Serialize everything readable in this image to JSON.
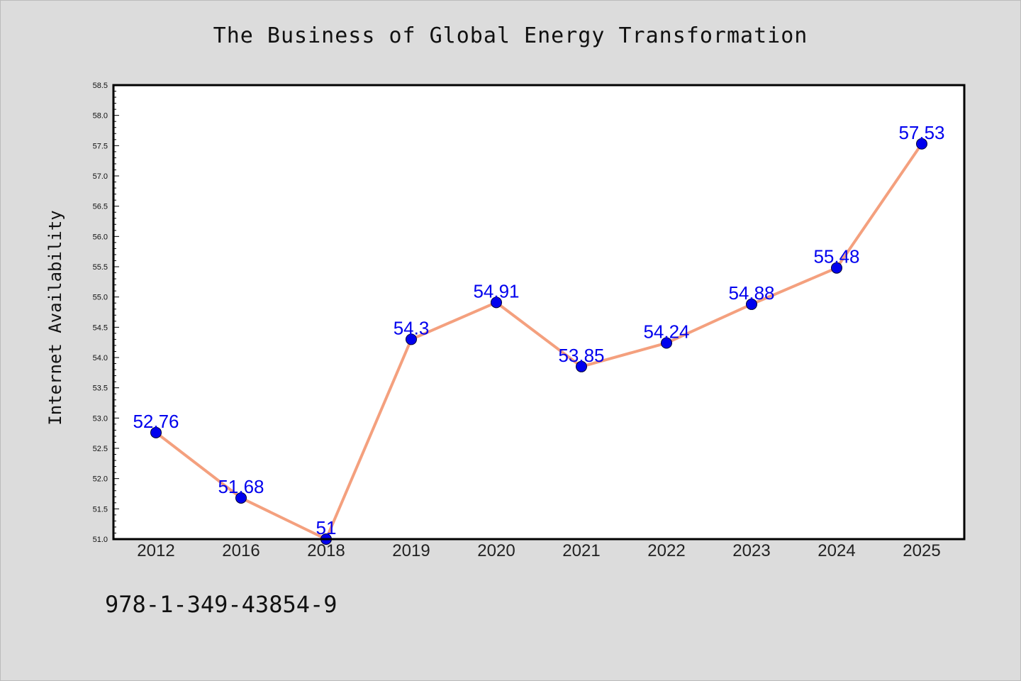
{
  "chart_data": {
    "type": "line",
    "title": "The Business of Global Energy Transformation",
    "xlabel": "",
    "ylabel": "Internet Availability",
    "categories": [
      "2012",
      "2016",
      "2018",
      "2019",
      "2020",
      "2021",
      "2022",
      "2023",
      "2024",
      "2025"
    ],
    "values": [
      52.76,
      51.68,
      51,
      54.3,
      54.91,
      53.85,
      54.24,
      54.88,
      55.48,
      57.53
    ],
    "data_labels": [
      "52.76",
      "51.68",
      "51",
      "54.3",
      "54.91",
      "53.85",
      "54.24",
      "54.88",
      "55.48",
      "57.53"
    ],
    "ylim": [
      51.0,
      58.5
    ],
    "yticks": [
      "51.0",
      "51.5",
      "52.0",
      "52.5",
      "53.0",
      "53.5",
      "54.0",
      "54.5",
      "55.0",
      "55.5",
      "56.0",
      "56.5",
      "57.0",
      "57.5",
      "58.0",
      "58.5"
    ],
    "grid": false,
    "legend": "none",
    "colors": {
      "line": "#f4a07e",
      "marker": "#0000ee",
      "label": "#0000ee",
      "background": "#dcdcdc",
      "plot_background": "#ffffff"
    }
  },
  "footer": {
    "isbn": "978-1-349-43854-9"
  }
}
